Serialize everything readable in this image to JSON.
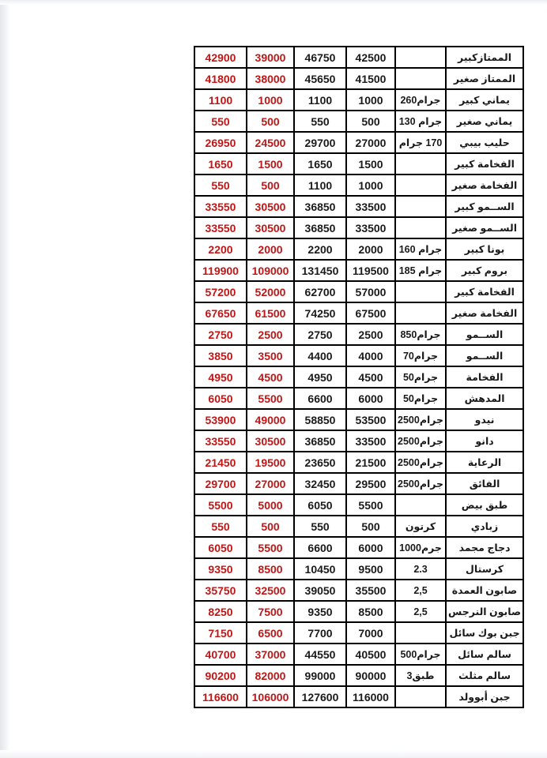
{
  "colors": {
    "red_price": "#bf1616",
    "black_text": "#1a1a1a",
    "border": "#000000",
    "page_background": "#ffffff"
  },
  "table": {
    "rows": [
      {
        "cells": [
          "42900",
          "39000",
          "46750",
          "42500",
          "",
          "الممتازكبير"
        ]
      },
      {
        "cells": [
          "41800",
          "38000",
          "45650",
          "41500",
          "",
          "الممتاز صغير"
        ]
      },
      {
        "cells": [
          "1100",
          "1000",
          "1100",
          "1000",
          "260جرام",
          "يماني كبير"
        ]
      },
      {
        "cells": [
          "550",
          "500",
          "550",
          "500",
          "130 جرام",
          "يماني صغير"
        ]
      },
      {
        "cells": [
          "26950",
          "24500",
          "29700",
          "27000",
          "جرام‎ 170",
          "حليب بيبي"
        ]
      },
      {
        "cells": [
          "1650",
          "1500",
          "1650",
          "1500",
          "",
          "الفخامة كبير"
        ]
      },
      {
        "cells": [
          "550",
          "500",
          "1100",
          "1000",
          "",
          "الفخامة صغير"
        ]
      },
      {
        "cells": [
          "33550",
          "30500",
          "36850",
          "33500",
          "",
          "الســمو كبير"
        ]
      },
      {
        "cells": [
          "33550",
          "30500",
          "36850",
          "33500",
          "",
          "الســمو صغير"
        ]
      },
      {
        "cells": [
          "2200",
          "2000",
          "2200",
          "2000",
          "160 جرام",
          "بونا كبير"
        ]
      },
      {
        "cells": [
          "119900",
          "109000",
          "131450",
          "119500",
          "185 جرام",
          "بروم كبير"
        ]
      },
      {
        "cells": [
          "57200",
          "52000",
          "62700",
          "57000",
          "",
          "الفخامة كبير"
        ]
      },
      {
        "cells": [
          "67650",
          "61500",
          "74250",
          "67500",
          "",
          "الفخامة صغير"
        ]
      },
      {
        "cells": [
          "2750",
          "2500",
          "2750",
          "2500",
          "850جرام",
          "الســمو"
        ]
      },
      {
        "cells": [
          "3850",
          "3500",
          "4400",
          "4000",
          "70جرام",
          "الســمو"
        ]
      },
      {
        "cells": [
          "4950",
          "4500",
          "4950",
          "4500",
          "50جرام",
          "الفخامة"
        ]
      },
      {
        "cells": [
          "6050",
          "5500",
          "6600",
          "6000",
          "50جرام",
          "المدهش"
        ]
      },
      {
        "cells": [
          "53900",
          "49000",
          "58850",
          "53500",
          "2500جرام",
          "نيدو"
        ]
      },
      {
        "cells": [
          "33550",
          "30500",
          "36850",
          "33500",
          "2500جرام",
          "دانو"
        ]
      },
      {
        "cells": [
          "21450",
          "19500",
          "23650",
          "21500",
          "2500جرام",
          "الرعاية"
        ]
      },
      {
        "cells": [
          "29700",
          "27000",
          "32450",
          "29500",
          "2500جرام",
          "الفائق"
        ]
      },
      {
        "cells": [
          "5500",
          "5000",
          "6050",
          "5500",
          "",
          "طبق بيض"
        ]
      },
      {
        "cells": [
          "550",
          "500",
          "550",
          "500",
          "كرتون",
          "زبادي"
        ]
      },
      {
        "cells": [
          "6050",
          "5500",
          "6600",
          "6000",
          "1000جرم",
          "دجاج مجمد"
        ]
      },
      {
        "cells": [
          "9350",
          "8500",
          "10450",
          "9500",
          "2.3",
          "كرستال"
        ]
      },
      {
        "cells": [
          "35750",
          "32500",
          "39050",
          "35500",
          "2,5",
          "صابون العمدة"
        ]
      },
      {
        "cells": [
          "8250",
          "7500",
          "9350",
          "8500",
          "2,5",
          "صابون النرجس"
        ]
      },
      {
        "cells": [
          "7150",
          "6500",
          "7700",
          "7000",
          "",
          "جبن بوك سائل"
        ]
      },
      {
        "cells": [
          "40700",
          "37000",
          "44550",
          "40500",
          "500جرام",
          "سالم سائل"
        ]
      },
      {
        "cells": [
          "90200",
          "82000",
          "99000",
          "90000",
          "3طبق",
          "سالم مثلث"
        ]
      },
      {
        "cells": [
          "116600",
          "106000",
          "127600",
          "116000",
          "",
          "جبن أبوولد"
        ]
      }
    ]
  }
}
